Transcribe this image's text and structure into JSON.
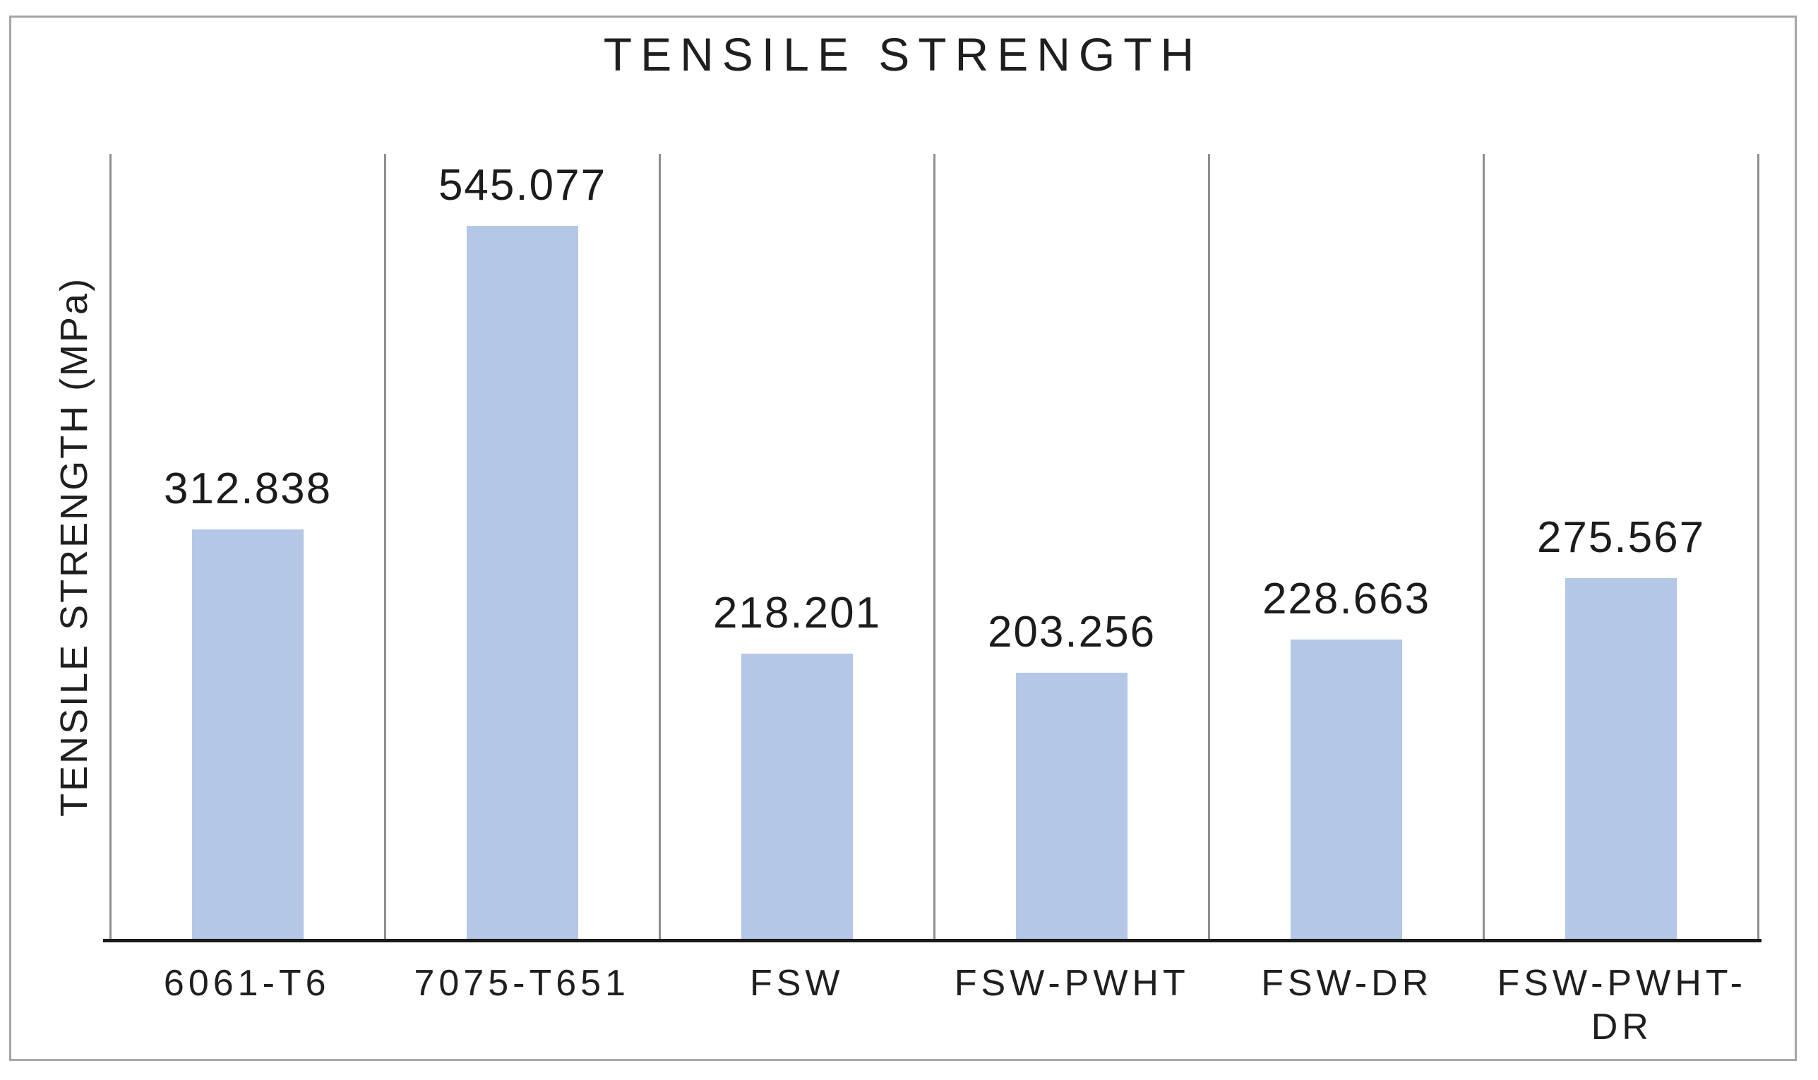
{
  "chart_data": {
    "type": "bar",
    "title": "TENSILE STRENGTH",
    "ylabel": "TENSILE STRENGTH (MPa)",
    "xlabel": "",
    "categories": [
      "6061-T6",
      "7075-T651",
      "FSW",
      "FSW-PWHT",
      "FSW-DR",
      "FSW-PWHT-DR"
    ],
    "values": [
      312.838,
      545.077,
      218.201,
      203.256,
      228.663,
      275.567
    ],
    "value_labels": [
      "312.838",
      "545.077",
      "218.201",
      "203.256",
      "228.663",
      "275.567"
    ],
    "ylim": [
      0,
      600
    ],
    "y_tick_labels": "none",
    "grid": "vertical-category-separators-only",
    "legend": "none",
    "bar_color": "#b4c7e7"
  },
  "colors": {
    "bar_fill": "#b4c7e7",
    "category_separator": "#8f8f8f",
    "axis_line": "#1a1a1a",
    "frame_border": "#a6a6a6",
    "text": "#1c1c1c",
    "background": "#ffffff"
  }
}
